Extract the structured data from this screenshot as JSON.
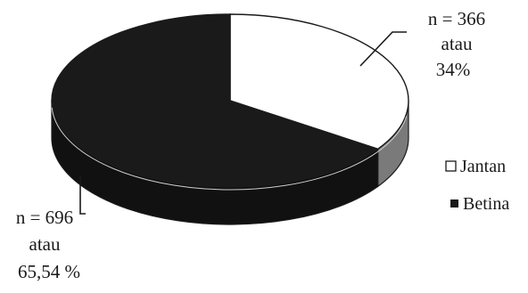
{
  "chart_data": {
    "type": "pie",
    "style": "3d",
    "title": "",
    "slices": [
      {
        "name": "Jantan",
        "value": 366,
        "percent_label": "34%",
        "label_lines": [
          "n = 366",
          "atau",
          "34%"
        ],
        "color": "#ffffff",
        "side_color": "#7a7a7a"
      },
      {
        "name": "Betina",
        "value": 696,
        "percent_label": "65,54 %",
        "label_lines": [
          "n = 696",
          "atau",
          "65,54 %"
        ],
        "color": "#1a1a1a",
        "side_color": "#111111"
      }
    ],
    "legend": {
      "placement": "right",
      "entries": [
        "Jantan",
        "Betina"
      ]
    }
  }
}
